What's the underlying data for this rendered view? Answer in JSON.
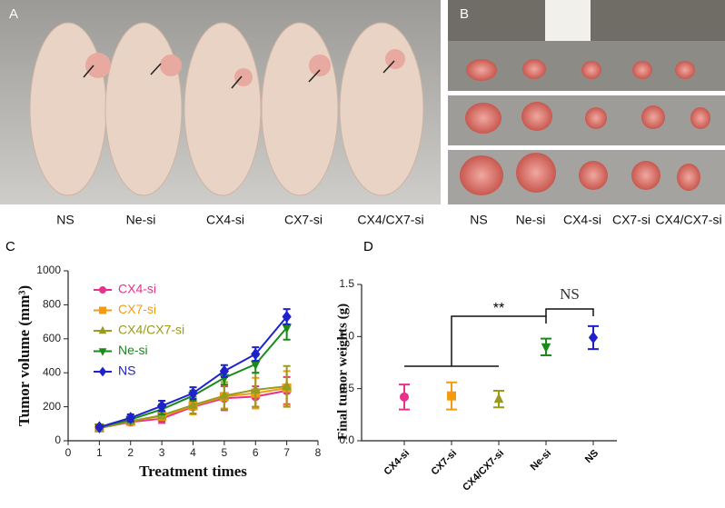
{
  "panels": {
    "a": {
      "letter": "A",
      "labels": [
        "NS",
        "Ne-si",
        "CX4-si",
        "CX7-si",
        "CX4/CX7-si"
      ]
    },
    "b": {
      "letter": "B",
      "labels": [
        "NS",
        "Ne-si",
        "CX4-si",
        "CX7-si",
        "CX4/CX7-si"
      ]
    },
    "c": {
      "letter": "C"
    },
    "d": {
      "letter": "D"
    }
  },
  "chart_data": [
    {
      "type": "line",
      "xlabel": "Treatment times",
      "ylabel": "Tumor volume (mm³)",
      "x": [
        1,
        2,
        3,
        4,
        5,
        6,
        7
      ],
      "xlim": [
        0,
        8
      ],
      "xticks": [
        0,
        1,
        2,
        3,
        4,
        5,
        6,
        7,
        8
      ],
      "ylim": [
        0,
        1000
      ],
      "yticks": [
        0,
        200,
        400,
        600,
        800,
        1000
      ],
      "legend": "upper left",
      "series": [
        {
          "name": "CX4-si",
          "color": "#e8318c",
          "marker": "circle",
          "values": [
            75,
            110,
            130,
            200,
            250,
            260,
            295
          ],
          "errors": [
            5,
            15,
            25,
            40,
            70,
            60,
            80
          ]
        },
        {
          "name": "CX7-si",
          "color": "#f39a12",
          "marker": "square",
          "values": [
            75,
            115,
            145,
            205,
            260,
            280,
            310
          ],
          "errors": [
            5,
            15,
            20,
            50,
            70,
            90,
            100
          ]
        },
        {
          "name": "CX4/CX7-si",
          "color": "#999a1e",
          "marker": "triangle",
          "values": [
            75,
            115,
            150,
            210,
            265,
            300,
            320
          ],
          "errors": [
            5,
            15,
            20,
            50,
            80,
            100,
            120
          ]
        },
        {
          "name": "Ne-si",
          "color": "#1a8a1a",
          "marker": "triangle-down",
          "values": [
            78,
            125,
            185,
            265,
            370,
            450,
            665
          ],
          "errors": [
            5,
            15,
            30,
            30,
            40,
            50,
            70
          ]
        },
        {
          "name": "NS",
          "color": "#1f22cc",
          "marker": "diamond",
          "values": [
            80,
            135,
            205,
            280,
            410,
            510,
            730
          ],
          "errors": [
            8,
            20,
            30,
            35,
            35,
            40,
            45
          ]
        }
      ]
    },
    {
      "type": "dot",
      "ylabel": "Final tumor weights (g)",
      "categories": [
        "CX4-si",
        "CX7-si",
        "CX4/CX7-si",
        "Ne-si",
        "NS"
      ],
      "values": [
        0.42,
        0.43,
        0.4,
        0.9,
        0.99
      ],
      "errors": [
        0.12,
        0.13,
        0.08,
        0.08,
        0.11
      ],
      "colors": [
        "#e8318c",
        "#f39a12",
        "#999a1e",
        "#1a8a1a",
        "#1f22cc"
      ],
      "markers": [
        "circle",
        "square",
        "triangle",
        "triangle-down",
        "diamond"
      ],
      "ylim": [
        0,
        1.5
      ],
      "yticks": [
        {
          "value": 0,
          "label": "0.0"
        },
        0.5,
        {
          "value": 1,
          "label": "1.0"
        },
        1.5
      ],
      "annotations": [
        "**",
        "NS"
      ]
    }
  ]
}
